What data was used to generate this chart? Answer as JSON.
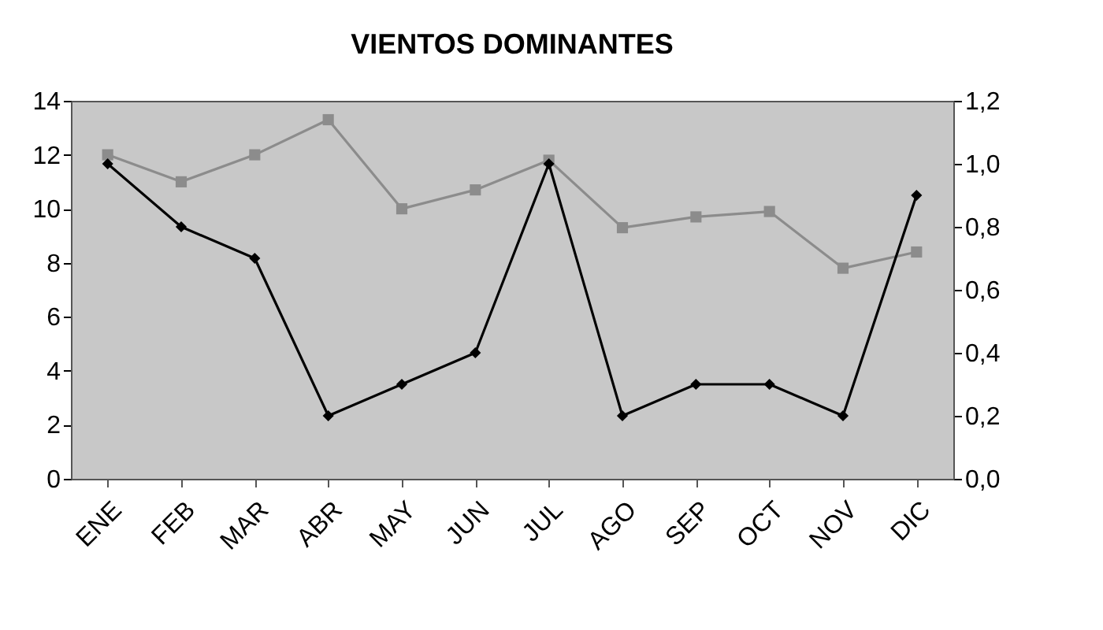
{
  "chart_data": {
    "type": "line",
    "title": "VIENTOS DOMINANTES",
    "categories": [
      "ENE",
      "FEB",
      "MAR",
      "ABR",
      "MAY",
      "JUN",
      "JUL",
      "AGO",
      "SEP",
      "OCT",
      "NOV",
      "DIC"
    ],
    "series": [
      {
        "color": "#8c8c8c",
        "marker": "square",
        "values": [
          12,
          11,
          12,
          13.3,
          10,
          10.7,
          11.8,
          9.3,
          9.7,
          9.9,
          7.8,
          8.4
        ]
      },
      {
        "color": "#000000",
        "marker": "diamond",
        "axis": "y2",
        "values": [
          1.0,
          0.8,
          0.7,
          0.2,
          0.3,
          0.4,
          1.0,
          0.2,
          0.3,
          0.3,
          0.2,
          0.9
        ]
      }
    ],
    "ylim": [
      0,
      14
    ],
    "yticks": [
      0,
      2,
      4,
      6,
      8,
      10,
      12,
      14
    ],
    "y2lim": [
      0,
      1.2
    ],
    "y2ticks": [
      {
        "value": 0,
        "label": "0,0"
      },
      {
        "value": 0.2,
        "label": "0,2"
      },
      {
        "value": 0.4,
        "label": "0,4"
      },
      {
        "value": 0.6,
        "label": "0,6"
      },
      {
        "value": 0.8,
        "label": "0,8"
      },
      {
        "value": 1.0,
        "label": "1,0"
      },
      {
        "value": 1.2,
        "label": "1,2"
      }
    ],
    "grid": false
  }
}
